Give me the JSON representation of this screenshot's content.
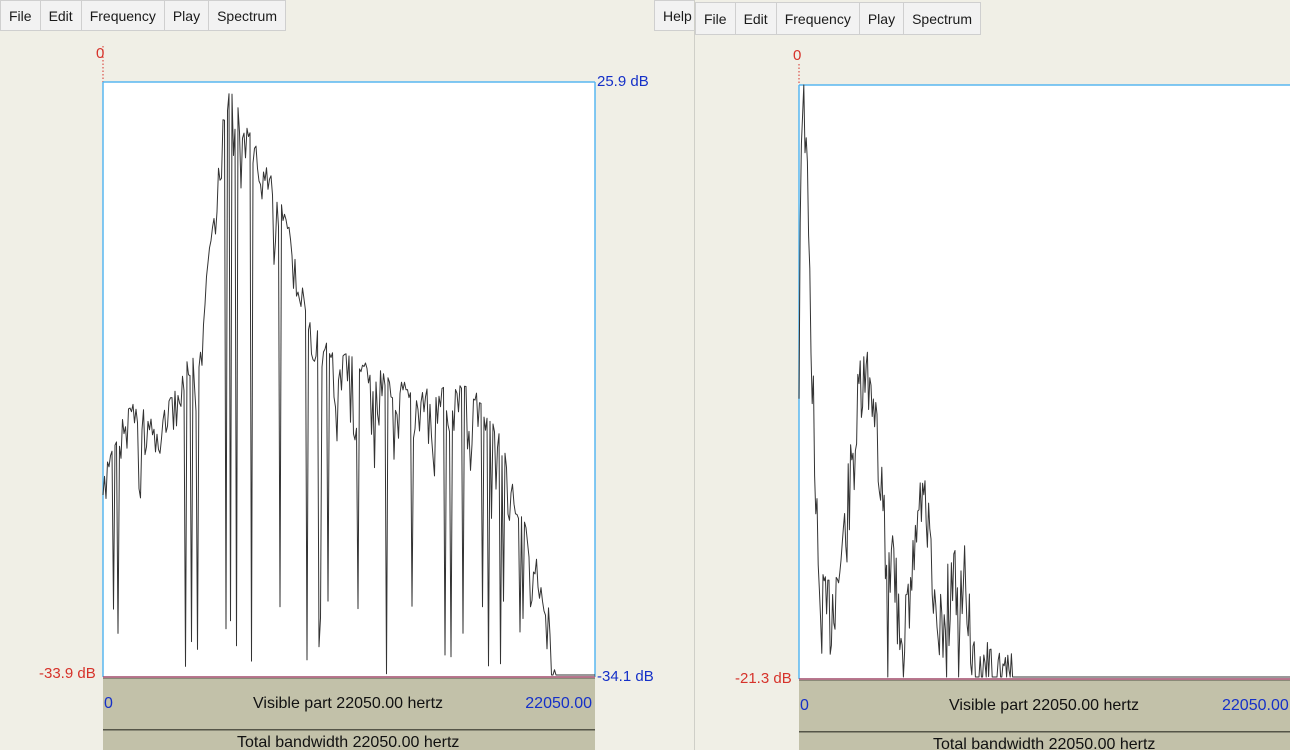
{
  "windows": [
    {
      "menu": [
        "File",
        "Edit",
        "Frequency",
        "Play",
        "Spectrum"
      ],
      "help_label": "Help",
      "cursor_label": "0",
      "db_top": "25.9 dB",
      "db_bottom_left": "-33.9 dB",
      "db_bottom_right": "-34.1 dB",
      "freq_min": "0",
      "freq_max": "22050.00",
      "visible_part": "Visible part 22050.00 hertz",
      "total_bandwidth": "Total bandwidth 22050.00 hertz"
    },
    {
      "menu": [
        "File",
        "Edit",
        "Frequency",
        "Play",
        "Spectrum"
      ],
      "cursor_label": "0",
      "db_bottom_left": "-21.3 dB",
      "freq_min": "0",
      "freq_max": "22050.00",
      "visible_part": "Visible part 22050.00 hertz",
      "total_bandwidth": "Total bandwidth 22050.00 hertz"
    }
  ],
  "colors": {
    "background": "#f0efe6",
    "frame_blue": "#58b7f0",
    "axis_red": "#d6322a",
    "label_blue": "#1530c8",
    "panel": "#c2c1a9",
    "trace": "#333333"
  }
}
